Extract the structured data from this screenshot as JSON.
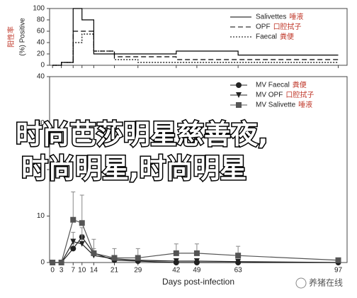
{
  "chart_data": [
    {
      "type": "line",
      "step": true,
      "y_label": "(%) Positive",
      "y_label_zh": "阳性率",
      "x": [
        0,
        3,
        7,
        10,
        14,
        21,
        29,
        42,
        49,
        63,
        97
      ],
      "xlim": [
        -1,
        100
      ],
      "xticks": [
        0,
        3,
        7,
        10,
        14,
        21,
        29,
        42,
        49,
        63,
        97
      ],
      "xtick_labels": false,
      "ylim": [
        0,
        100
      ],
      "yticks": [
        0,
        20,
        40,
        60,
        80,
        100
      ],
      "legend": "upper right",
      "series": [
        {
          "name": "Salivettes",
          "label_zh": "唾液",
          "color": "#000000",
          "dash": "solid",
          "values": [
            0,
            5,
            100,
            80,
            20,
            20,
            20,
            25,
            25,
            18,
            18
          ]
        },
        {
          "name": "OPF",
          "label_zh": "口腔拭子",
          "color": "#000000",
          "dash": "dashed",
          "values": [
            0,
            5,
            60,
            60,
            25,
            15,
            15,
            10,
            10,
            10,
            10
          ]
        },
        {
          "name": "Faecal",
          "label_zh": "粪便",
          "color": "#000000",
          "dash": "dotted",
          "values": [
            0,
            5,
            40,
            55,
            25,
            10,
            5,
            5,
            5,
            5,
            5
          ]
        }
      ]
    },
    {
      "type": "line",
      "step": false,
      "x_label": "Days post-infection",
      "x": [
        0,
        3,
        7,
        10,
        14,
        21,
        29,
        42,
        49,
        63,
        97
      ],
      "xlim": [
        -1,
        100
      ],
      "xticks": [
        0,
        3,
        7,
        10,
        14,
        21,
        29,
        42,
        49,
        63,
        97
      ],
      "xtick_labels": true,
      "ylim": [
        0,
        40
      ],
      "yticks": [
        0,
        10,
        20,
        30,
        40
      ],
      "legend": "upper right",
      "series": [
        {
          "name": "MV Faecal",
          "label_zh": "粪便",
          "color": "#222222",
          "marker": "circle",
          "values": [
            0,
            0,
            3,
            5.5,
            2,
            0.5,
            0.3,
            0,
            0,
            0,
            0
          ],
          "errors": [
            0,
            0,
            1,
            2,
            1,
            0.5,
            0.3,
            0,
            0,
            0,
            0
          ]
        },
        {
          "name": "MV OPF",
          "label_zh": "口腔拭子",
          "color": "#222222",
          "marker": "triangle",
          "values": [
            0,
            0,
            4.5,
            4,
            1.5,
            0.8,
            0.5,
            0.3,
            0.3,
            0.2,
            0
          ],
          "errors": [
            0,
            0,
            2,
            2,
            1,
            0.5,
            0.5,
            0.3,
            0.3,
            0.2,
            0
          ]
        },
        {
          "name": "MV Salivette",
          "label_zh": "唾液",
          "color": "#555555",
          "marker": "square",
          "values": [
            0,
            0,
            9.2,
            8.5,
            2,
            1,
            1,
            2,
            2,
            1.5,
            0.5
          ],
          "errors": [
            0,
            0,
            6,
            6,
            3,
            2,
            2,
            2,
            2,
            2,
            0
          ]
        }
      ]
    }
  ],
  "overlay": {
    "line1": "时尚芭莎明星慈善夜,",
    "line2": "时尚明星,时尚明星"
  },
  "watermark": "养猪在线"
}
